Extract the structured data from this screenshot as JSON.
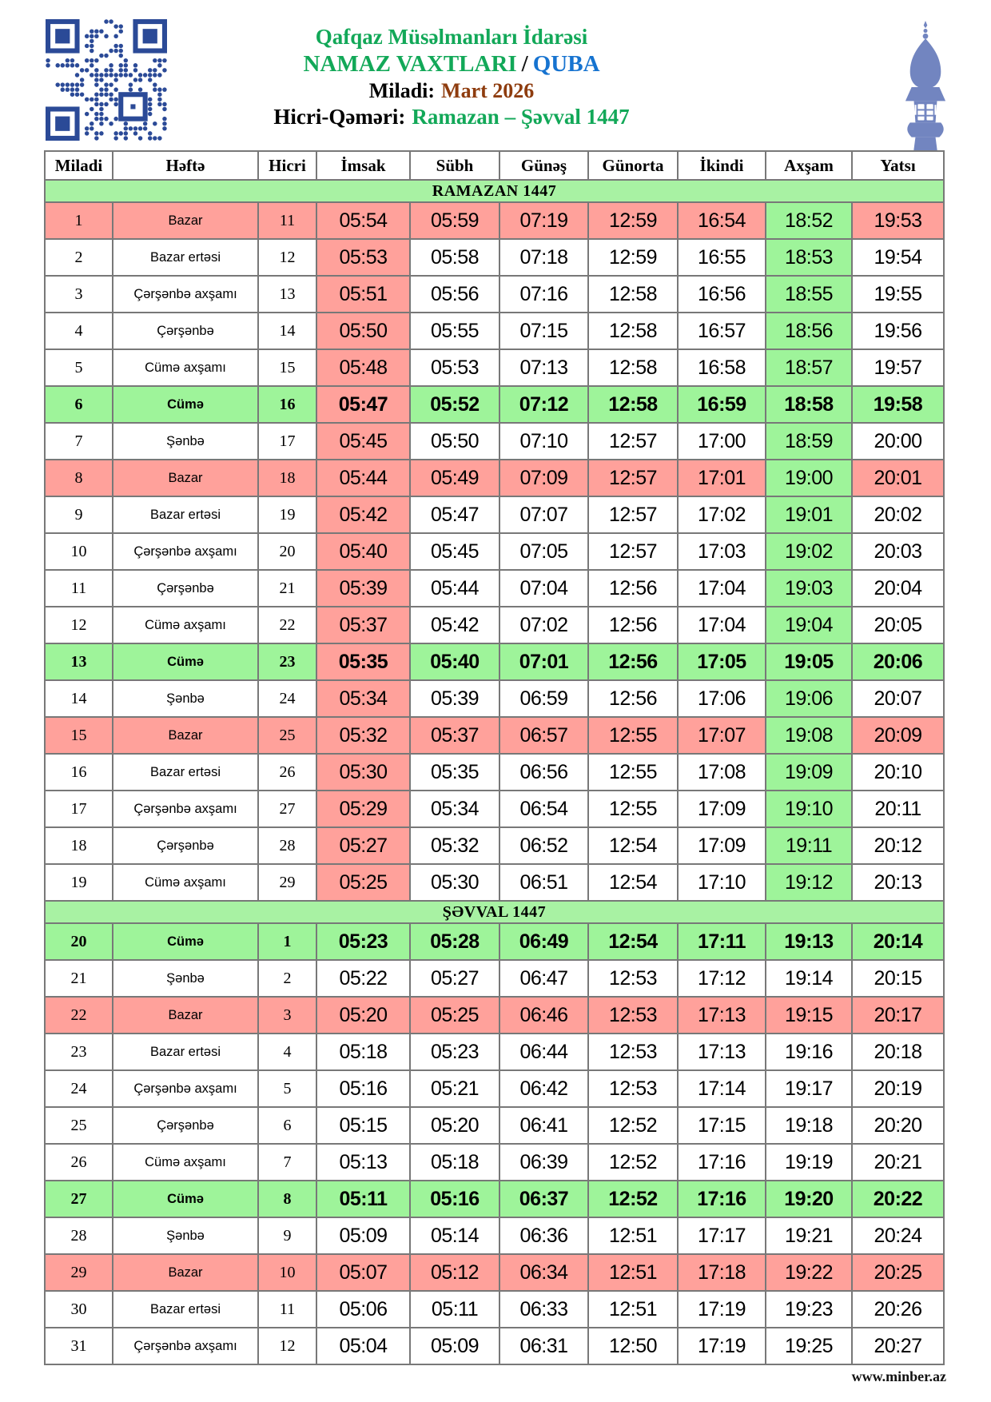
{
  "header": {
    "org": "Qafqaz Müsəlmanları İdarəsi",
    "title": "NAMAZ VAXTLARI",
    "title_sep": "/",
    "city": "QUBA",
    "miladi_label": "Miladi:",
    "miladi_value": "Mart 2026",
    "hicri_label": "Hicri-Qəməri:",
    "hicri_value": "Ramazan – Şəvval 1447"
  },
  "icons": {
    "qr": "qr-code-icon",
    "minaret": "minaret-icon"
  },
  "table": {
    "columns": [
      "Miladi",
      "Həftə",
      "Hicri",
      "İmsak",
      "Sübh",
      "Günəş",
      "Günorta",
      "İkindi",
      "Axşam",
      "Yatsı"
    ],
    "sections": [
      {
        "title": "RAMAZAN 1447",
        "ramazan": true,
        "rows": [
          {
            "miladi": 1,
            "hefte": "Bazar",
            "hicri": 11,
            "times": [
              "05:54",
              "05:59",
              "07:19",
              "12:59",
              "16:54",
              "18:52",
              "19:53"
            ],
            "type": "sunday"
          },
          {
            "miladi": 2,
            "hefte": "Bazar ertəsi",
            "hicri": 12,
            "times": [
              "05:53",
              "05:58",
              "07:18",
              "12:59",
              "16:55",
              "18:53",
              "19:54"
            ],
            "type": "normal"
          },
          {
            "miladi": 3,
            "hefte": "Çərşənbə axşamı",
            "hicri": 13,
            "times": [
              "05:51",
              "05:56",
              "07:16",
              "12:58",
              "16:56",
              "18:55",
              "19:55"
            ],
            "type": "normal"
          },
          {
            "miladi": 4,
            "hefte": "Çərşənbə",
            "hicri": 14,
            "times": [
              "05:50",
              "05:55",
              "07:15",
              "12:58",
              "16:57",
              "18:56",
              "19:56"
            ],
            "type": "normal"
          },
          {
            "miladi": 5,
            "hefte": "Cümə axşamı",
            "hicri": 15,
            "times": [
              "05:48",
              "05:53",
              "07:13",
              "12:58",
              "16:58",
              "18:57",
              "19:57"
            ],
            "type": "normal"
          },
          {
            "miladi": 6,
            "hefte": "Cümə",
            "hicri": 16,
            "times": [
              "05:47",
              "05:52",
              "07:12",
              "12:58",
              "16:59",
              "18:58",
              "19:58"
            ],
            "type": "friday"
          },
          {
            "miladi": 7,
            "hefte": "Şənbə",
            "hicri": 17,
            "times": [
              "05:45",
              "05:50",
              "07:10",
              "12:57",
              "17:00",
              "18:59",
              "20:00"
            ],
            "type": "normal"
          },
          {
            "miladi": 8,
            "hefte": "Bazar",
            "hicri": 18,
            "times": [
              "05:44",
              "05:49",
              "07:09",
              "12:57",
              "17:01",
              "19:00",
              "20:01"
            ],
            "type": "sunday"
          },
          {
            "miladi": 9,
            "hefte": "Bazar ertəsi",
            "hicri": 19,
            "times": [
              "05:42",
              "05:47",
              "07:07",
              "12:57",
              "17:02",
              "19:01",
              "20:02"
            ],
            "type": "normal"
          },
          {
            "miladi": 10,
            "hefte": "Çərşənbə axşamı",
            "hicri": 20,
            "times": [
              "05:40",
              "05:45",
              "07:05",
              "12:57",
              "17:03",
              "19:02",
              "20:03"
            ],
            "type": "normal"
          },
          {
            "miladi": 11,
            "hefte": "Çərşənbə",
            "hicri": 21,
            "times": [
              "05:39",
              "05:44",
              "07:04",
              "12:56",
              "17:04",
              "19:03",
              "20:04"
            ],
            "type": "normal"
          },
          {
            "miladi": 12,
            "hefte": "Cümə axşamı",
            "hicri": 22,
            "times": [
              "05:37",
              "05:42",
              "07:02",
              "12:56",
              "17:04",
              "19:04",
              "20:05"
            ],
            "type": "normal"
          },
          {
            "miladi": 13,
            "hefte": "Cümə",
            "hicri": 23,
            "times": [
              "05:35",
              "05:40",
              "07:01",
              "12:56",
              "17:05",
              "19:05",
              "20:06"
            ],
            "type": "friday"
          },
          {
            "miladi": 14,
            "hefte": "Şənbə",
            "hicri": 24,
            "times": [
              "05:34",
              "05:39",
              "06:59",
              "12:56",
              "17:06",
              "19:06",
              "20:07"
            ],
            "type": "normal"
          },
          {
            "miladi": 15,
            "hefte": "Bazar",
            "hicri": 25,
            "times": [
              "05:32",
              "05:37",
              "06:57",
              "12:55",
              "17:07",
              "19:08",
              "20:09"
            ],
            "type": "sunday"
          },
          {
            "miladi": 16,
            "hefte": "Bazar ertəsi",
            "hicri": 26,
            "times": [
              "05:30",
              "05:35",
              "06:56",
              "12:55",
              "17:08",
              "19:09",
              "20:10"
            ],
            "type": "normal"
          },
          {
            "miladi": 17,
            "hefte": "Çərşənbə axşamı",
            "hicri": 27,
            "times": [
              "05:29",
              "05:34",
              "06:54",
              "12:55",
              "17:09",
              "19:10",
              "20:11"
            ],
            "type": "normal"
          },
          {
            "miladi": 18,
            "hefte": "Çərşənbə",
            "hicri": 28,
            "times": [
              "05:27",
              "05:32",
              "06:52",
              "12:54",
              "17:09",
              "19:11",
              "20:12"
            ],
            "type": "normal"
          },
          {
            "miladi": 19,
            "hefte": "Cümə axşamı",
            "hicri": 29,
            "times": [
              "05:25",
              "05:30",
              "06:51",
              "12:54",
              "17:10",
              "19:12",
              "20:13"
            ],
            "type": "normal"
          }
        ]
      },
      {
        "title": "ŞƏVVAL 1447",
        "ramazan": false,
        "rows": [
          {
            "miladi": 20,
            "hefte": "Cümə",
            "hicri": 1,
            "times": [
              "05:23",
              "05:28",
              "06:49",
              "12:54",
              "17:11",
              "19:13",
              "20:14"
            ],
            "type": "friday"
          },
          {
            "miladi": 21,
            "hefte": "Şənbə",
            "hicri": 2,
            "times": [
              "05:22",
              "05:27",
              "06:47",
              "12:53",
              "17:12",
              "19:14",
              "20:15"
            ],
            "type": "normal"
          },
          {
            "miladi": 22,
            "hefte": "Bazar",
            "hicri": 3,
            "times": [
              "05:20",
              "05:25",
              "06:46",
              "12:53",
              "17:13",
              "19:15",
              "20:17"
            ],
            "type": "sunday"
          },
          {
            "miladi": 23,
            "hefte": "Bazar ertəsi",
            "hicri": 4,
            "times": [
              "05:18",
              "05:23",
              "06:44",
              "12:53",
              "17:13",
              "19:16",
              "20:18"
            ],
            "type": "normal"
          },
          {
            "miladi": 24,
            "hefte": "Çərşənbə axşamı",
            "hicri": 5,
            "times": [
              "05:16",
              "05:21",
              "06:42",
              "12:53",
              "17:14",
              "19:17",
              "20:19"
            ],
            "type": "normal"
          },
          {
            "miladi": 25,
            "hefte": "Çərşənbə",
            "hicri": 6,
            "times": [
              "05:15",
              "05:20",
              "06:41",
              "12:52",
              "17:15",
              "19:18",
              "20:20"
            ],
            "type": "normal"
          },
          {
            "miladi": 26,
            "hefte": "Cümə axşamı",
            "hicri": 7,
            "times": [
              "05:13",
              "05:18",
              "06:39",
              "12:52",
              "17:16",
              "19:19",
              "20:21"
            ],
            "type": "normal"
          },
          {
            "miladi": 27,
            "hefte": "Cümə",
            "hicri": 8,
            "times": [
              "05:11",
              "05:16",
              "06:37",
              "12:52",
              "17:16",
              "19:20",
              "20:22"
            ],
            "type": "friday"
          },
          {
            "miladi": 28,
            "hefte": "Şənbə",
            "hicri": 9,
            "times": [
              "05:09",
              "05:14",
              "06:36",
              "12:51",
              "17:17",
              "19:21",
              "20:24"
            ],
            "type": "normal"
          },
          {
            "miladi": 29,
            "hefte": "Bazar",
            "hicri": 10,
            "times": [
              "05:07",
              "05:12",
              "06:34",
              "12:51",
              "17:18",
              "19:22",
              "20:25"
            ],
            "type": "sunday"
          },
          {
            "miladi": 30,
            "hefte": "Bazar ertəsi",
            "hicri": 11,
            "times": [
              "05:06",
              "05:11",
              "06:33",
              "12:51",
              "17:19",
              "19:23",
              "20:26"
            ],
            "type": "normal"
          },
          {
            "miladi": 31,
            "hefte": "Çərşənbə axşamı",
            "hicri": 12,
            "times": [
              "05:04",
              "05:09",
              "06:31",
              "12:50",
              "17:19",
              "19:25",
              "20:27"
            ],
            "type": "normal"
          }
        ]
      }
    ]
  },
  "footer": {
    "site": "www.minber.az"
  },
  "colors": {
    "pink": "#ffa19b",
    "cell_green": "#9ef49a",
    "section_green": "#a8f2a3",
    "title_green": "#12a858",
    "city_blue": "#1673d0",
    "month_brown": "#8e3c0e",
    "qr_blue": "#2b4a97",
    "minaret_blue": "#7285c0"
  }
}
